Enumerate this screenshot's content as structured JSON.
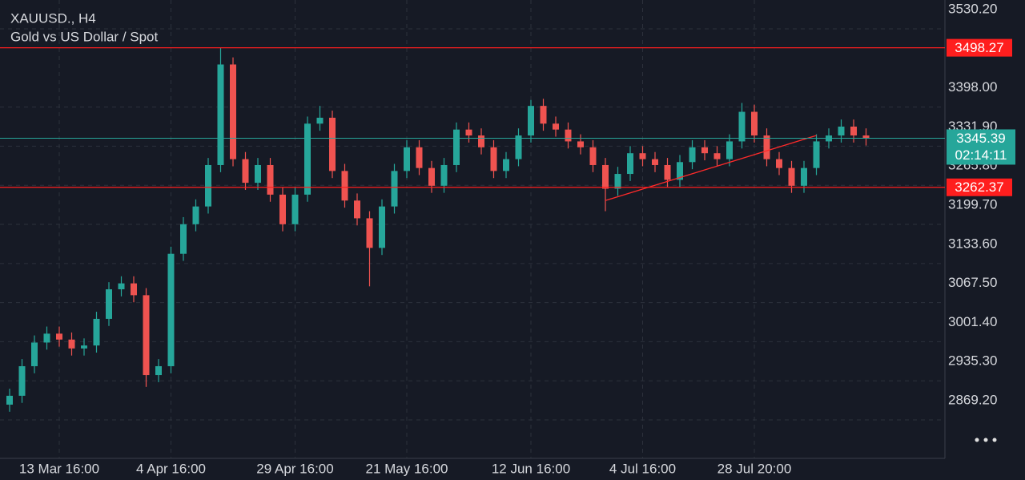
{
  "chart_data": {
    "type": "candlestick",
    "title": "XAUUSD., H4",
    "subtitle": "Gold vs US Dollar / Spot",
    "categories": [
      null,
      null,
      null,
      null,
      "13 Mar 16:00",
      null,
      null,
      null,
      null,
      null,
      null,
      null,
      null,
      "4 Apr 16:00",
      null,
      null,
      null,
      null,
      null,
      null,
      null,
      null,
      null,
      "29 Apr 16:00",
      null,
      null,
      null,
      null,
      null,
      null,
      null,
      null,
      "21 May 16:00",
      null,
      null,
      null,
      null,
      null,
      null,
      null,
      null,
      null,
      "12 Jun 16:00",
      null,
      null,
      null,
      null,
      null,
      null,
      null,
      null,
      "4 Jul 16:00",
      null,
      null,
      null,
      null,
      null,
      null,
      null,
      null,
      "28 Jul 20:00",
      null,
      null,
      null,
      null,
      null,
      null,
      null,
      null,
      null
    ],
    "open": [
      2895,
      2910,
      2960,
      3000,
      3015,
      3005,
      2990,
      2995,
      3040,
      3090,
      3100,
      3080,
      2945,
      2960,
      3150,
      3200,
      3230,
      3300,
      3470,
      3310,
      3270,
      3300,
      3250,
      3200,
      3250,
      3370,
      3380,
      3290,
      3240,
      3210,
      3160,
      3230,
      3290,
      3330,
      3295,
      3265,
      3300,
      3360,
      3350,
      3330,
      3290,
      3310,
      3350,
      3400,
      3370,
      3360,
      3340,
      3330,
      3300,
      3260,
      3285,
      3320,
      3310,
      3300,
      3275,
      3305,
      3330,
      3320,
      3310,
      3340,
      3390,
      3350,
      3310,
      3295,
      3265,
      3295,
      3340,
      3350,
      3365,
      3350
    ],
    "high": [
      2922,
      2972,
      3012,
      3027,
      3027,
      3017,
      3007,
      3052,
      3102,
      3112,
      3112,
      3092,
      2972,
      3162,
      3212,
      3242,
      3312,
      3498.27,
      3482,
      3322,
      3312,
      3312,
      3262,
      3262,
      3382,
      3400,
      3392,
      3302,
      3252,
      3222,
      3242,
      3302,
      3342,
      3342,
      3307,
      3312,
      3372,
      3372,
      3362,
      3342,
      3322,
      3362,
      3410,
      3412,
      3382,
      3372,
      3352,
      3342,
      3312,
      3297,
      3332,
      3332,
      3322,
      3312,
      3317,
      3342,
      3342,
      3332,
      3352,
      3405,
      3402,
      3362,
      3322,
      3307,
      3307,
      3352,
      3362,
      3377,
      3377,
      3362
    ],
    "low": [
      2883,
      2898,
      2948,
      2988,
      2993,
      2978,
      2978,
      2983,
      3028,
      3078,
      3068,
      2925,
      2933,
      2948,
      3138,
      3188,
      3218,
      3288,
      3298,
      3258,
      3258,
      3238,
      3188,
      3188,
      3238,
      3358,
      3278,
      3228,
      3198,
      3095,
      3148,
      3218,
      3278,
      3283,
      3253,
      3253,
      3288,
      3338,
      3318,
      3278,
      3278,
      3298,
      3338,
      3358,
      3348,
      3328,
      3318,
      3288,
      3222,
      3248,
      3273,
      3298,
      3288,
      3263,
      3263,
      3293,
      3308,
      3298,
      3298,
      3328,
      3338,
      3298,
      3283,
      3253,
      3253,
      3283,
      3328,
      3338,
      3338,
      3333
    ],
    "close": [
      2910,
      2960,
      3000,
      3015,
      3005,
      2990,
      2995,
      3040,
      3090,
      3100,
      3080,
      2945,
      2960,
      3150,
      3200,
      3230,
      3300,
      3470,
      3310,
      3270,
      3300,
      3250,
      3200,
      3250,
      3370,
      3380,
      3290,
      3240,
      3210,
      3160,
      3230,
      3290,
      3330,
      3295,
      3265,
      3300,
      3360,
      3350,
      3330,
      3290,
      3310,
      3350,
      3400,
      3370,
      3360,
      3340,
      3330,
      3300,
      3260,
      3285,
      3320,
      3310,
      3300,
      3275,
      3305,
      3330,
      3320,
      3310,
      3340,
      3390,
      3350,
      3310,
      3295,
      3265,
      3295,
      3340,
      3350,
      3365,
      3350,
      3345.39
    ],
    "up_color": "#26a69a",
    "down_color": "#ef5350",
    "ylim": [
      2804.2,
      3579.0
    ],
    "yticks": [
      {
        "value": 3530.2,
        "label": "3530.20"
      },
      {
        "value": 3398.0,
        "label": "3398.00"
      },
      {
        "value": 3331.9,
        "label": "3331.90"
      },
      {
        "value": 3265.8,
        "label": "3265.80"
      },
      {
        "value": 3199.7,
        "label": "3199.70"
      },
      {
        "value": 3133.6,
        "label": "3133.60"
      },
      {
        "value": 3067.5,
        "label": "3067.50"
      },
      {
        "value": 3001.4,
        "label": "3001.40"
      },
      {
        "value": 2935.3,
        "label": "2935.30"
      },
      {
        "value": 2869.2,
        "label": "2869.20"
      }
    ],
    "grid": true,
    "levels": [
      {
        "value": 3498.27,
        "color": "#ff1e1e"
      },
      {
        "value": 3262.37,
        "color": "#ff1e1e"
      }
    ],
    "current_price": {
      "value": 3345.39,
      "countdown": "02:14:11",
      "color": "#26a69a"
    },
    "trendline": {
      "values": [
        3240,
        3350
      ],
      "color": "#ff2a2a"
    }
  }
}
